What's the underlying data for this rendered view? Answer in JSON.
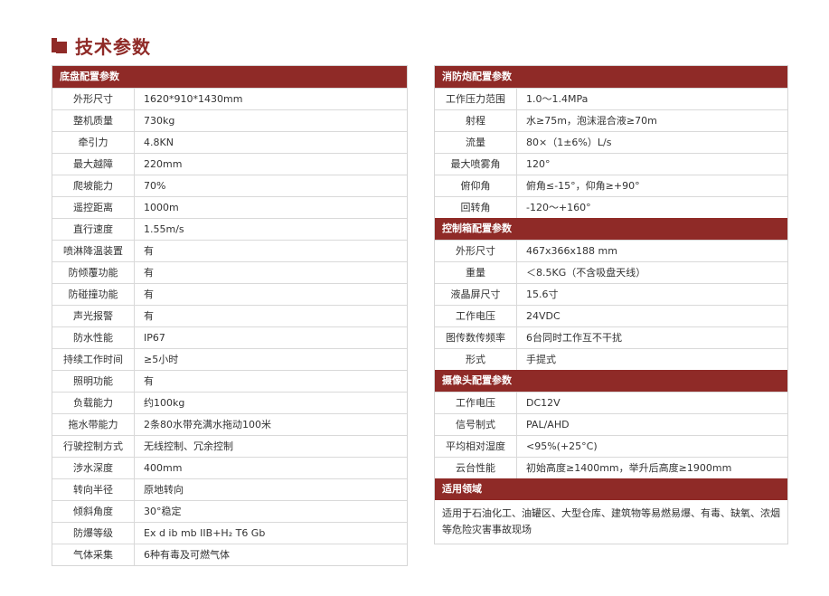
{
  "title": "技术参数",
  "colors": {
    "accent": "#8f2a27"
  },
  "left": [
    {
      "header": "底盘配置参数",
      "rows": [
        [
          "外形尺寸",
          "1620*910*1430mm"
        ],
        [
          "整机质量",
          "730kg"
        ],
        [
          "牵引力",
          "4.8KN"
        ],
        [
          "最大越障",
          "220mm"
        ],
        [
          "爬坡能力",
          "70%"
        ],
        [
          "遥控距离",
          "1000m"
        ],
        [
          "直行速度",
          "1.55m/s"
        ],
        [
          "喷淋降温装置",
          "有"
        ],
        [
          "防倾覆功能",
          "有"
        ],
        [
          "防碰撞功能",
          "有"
        ],
        [
          "声光报警",
          "有"
        ],
        [
          "防水性能",
          "IP67"
        ],
        [
          "持续工作时间",
          "≥5小时"
        ],
        [
          "照明功能",
          "有"
        ],
        [
          "负载能力",
          "约100kg"
        ],
        [
          "拖水带能力",
          "2条80水带充满水拖动100米"
        ],
        [
          "行驶控制方式",
          "无线控制、冗余控制"
        ],
        [
          "涉水深度",
          "400mm"
        ],
        [
          "转向半径",
          "原地转向"
        ],
        [
          "倾斜角度",
          "30°稳定"
        ],
        [
          "防爆等级",
          "Ex d ib mb IIB+H₂ T6 Gb"
        ],
        [
          "气体采集",
          "6种有毒及可燃气体"
        ]
      ]
    }
  ],
  "right": [
    {
      "header": "消防炮配置参数",
      "rows": [
        [
          "工作压力范围",
          "1.0～1.4MPa"
        ],
        [
          "射程",
          "水≥75m，泡沫混合液≥70m"
        ],
        [
          "流量",
          "80×（1±6%）L/s"
        ],
        [
          "最大喷雾角",
          "120°"
        ],
        [
          "俯仰角",
          "俯角≤-15°，仰角≥+90°"
        ],
        [
          "回转角",
          "-120～+160°"
        ]
      ]
    },
    {
      "header": "控制箱配置参数",
      "rows": [
        [
          "外形尺寸",
          "467x366x188 mm"
        ],
        [
          "重量",
          "＜8.5KG（不含吸盘天线）"
        ],
        [
          "液晶屏尺寸",
          "15.6寸"
        ],
        [
          "工作电压",
          "24VDC"
        ],
        [
          "图传数传频率",
          "6台同时工作互不干扰"
        ],
        [
          "形式",
          "手提式"
        ]
      ]
    },
    {
      "header": "摄像头配置参数",
      "rows": [
        [
          "工作电压",
          "DC12V"
        ],
        [
          "信号制式",
          "PAL/AHD"
        ],
        [
          "平均相对湿度",
          "<95%(+25°C)"
        ],
        [
          "云台性能",
          "初始高度≥1400mm，举升后高度≥1900mm"
        ]
      ]
    },
    {
      "header": "适用领域",
      "text": "适用于石油化工、油罐区、大型仓库、建筑物等易燃易爆、有毒、缺氧、浓烟等危险灾害事故现场"
    }
  ]
}
